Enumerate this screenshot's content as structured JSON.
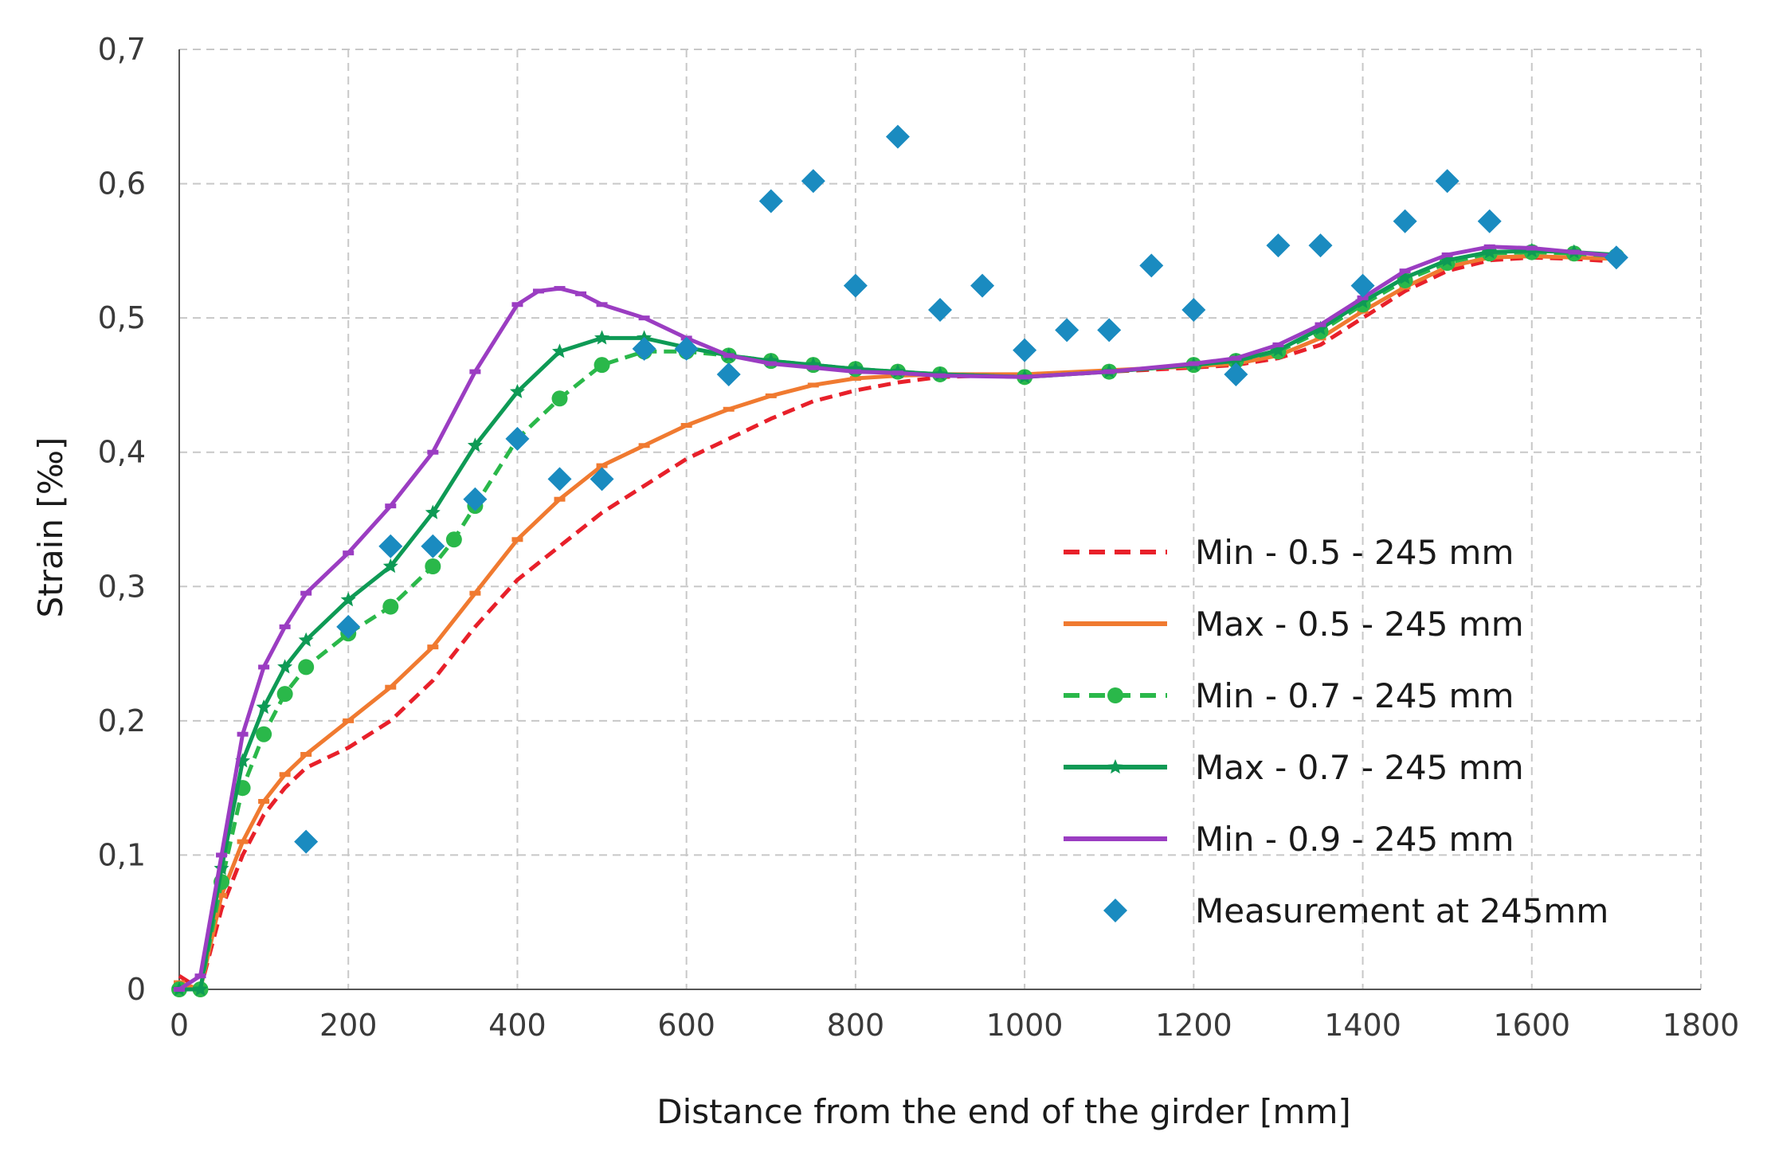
{
  "chart_data": {
    "type": "line",
    "title": "",
    "xlabel": "Distance from the end of the girder [mm]",
    "ylabel": "Strain [‰]",
    "xlim": [
      0,
      1800
    ],
    "ylim": [
      0,
      0.7
    ],
    "x_ticks": [
      0,
      200,
      400,
      600,
      800,
      1000,
      1200,
      1400,
      1600,
      1800
    ],
    "x_tick_labels": [
      "0",
      "200",
      "400",
      "600",
      "800",
      "1000",
      "1200",
      "1400",
      "1600",
      "1800"
    ],
    "y_ticks": [
      0,
      0.1,
      0.2,
      0.3,
      0.4,
      0.5,
      0.6,
      0.7
    ],
    "y_tick_labels": [
      "0",
      "0,1",
      "0,2",
      "0,3",
      "0,4",
      "0,5",
      "0,6",
      "0,7"
    ],
    "grid": true,
    "legend_position": "right-center",
    "series": [
      {
        "name": "Min - 0.5 - 245 mm",
        "color": "#e8202a",
        "style": "dashed",
        "marker": "none",
        "x": [
          0,
          25,
          50,
          75,
          100,
          125,
          150,
          200,
          250,
          300,
          350,
          400,
          450,
          500,
          550,
          600,
          650,
          700,
          750,
          800,
          850,
          900,
          1000,
          1100,
          1200,
          1250,
          1300,
          1350,
          1400,
          1450,
          1500,
          1550,
          1600,
          1650,
          1700
        ],
        "y": [
          0.01,
          0.0,
          0.06,
          0.1,
          0.13,
          0.15,
          0.165,
          0.18,
          0.2,
          0.23,
          0.27,
          0.305,
          0.33,
          0.355,
          0.375,
          0.395,
          0.41,
          0.425,
          0.438,
          0.446,
          0.452,
          0.456,
          0.458,
          0.46,
          0.463,
          0.465,
          0.47,
          0.48,
          0.5,
          0.52,
          0.535,
          0.543,
          0.545,
          0.544,
          0.542
        ]
      },
      {
        "name": "Max - 0.5 - 245 mm",
        "color": "#f07a30",
        "style": "solid",
        "marker": "dash",
        "x": [
          0,
          25,
          50,
          75,
          100,
          125,
          150,
          200,
          250,
          300,
          350,
          400,
          450,
          500,
          550,
          600,
          650,
          700,
          750,
          800,
          850,
          900,
          1000,
          1100,
          1200,
          1250,
          1300,
          1350,
          1400,
          1450,
          1500,
          1550,
          1600,
          1650,
          1700
        ],
        "y": [
          0.005,
          0.0,
          0.07,
          0.11,
          0.14,
          0.16,
          0.175,
          0.2,
          0.225,
          0.255,
          0.295,
          0.335,
          0.365,
          0.39,
          0.405,
          0.42,
          0.432,
          0.442,
          0.45,
          0.455,
          0.457,
          0.458,
          0.458,
          0.461,
          0.464,
          0.466,
          0.472,
          0.485,
          0.505,
          0.523,
          0.538,
          0.545,
          0.546,
          0.545,
          0.544
        ]
      },
      {
        "name": "Min - 0.7 - 245 mm",
        "color": "#2ab84a",
        "style": "dashed",
        "marker": "circle",
        "x": [
          0,
          25,
          50,
          75,
          100,
          125,
          150,
          200,
          250,
          300,
          325,
          350,
          400,
          450,
          500,
          550,
          600,
          650,
          700,
          750,
          800,
          850,
          900,
          1000,
          1100,
          1200,
          1250,
          1300,
          1350,
          1400,
          1450,
          1500,
          1550,
          1600,
          1650,
          1700
        ],
        "y": [
          0.0,
          0.0,
          0.08,
          0.15,
          0.19,
          0.22,
          0.24,
          0.265,
          0.285,
          0.315,
          0.335,
          0.36,
          0.41,
          0.44,
          0.465,
          0.475,
          0.475,
          0.472,
          0.468,
          0.465,
          0.462,
          0.46,
          0.458,
          0.456,
          0.46,
          0.465,
          0.468,
          0.475,
          0.49,
          0.51,
          0.528,
          0.541,
          0.548,
          0.549,
          0.548,
          0.546
        ]
      },
      {
        "name": "Max - 0.7 - 245 mm",
        "color": "#0e9a55",
        "style": "solid",
        "marker": "star",
        "x": [
          0,
          25,
          50,
          75,
          100,
          125,
          150,
          200,
          250,
          300,
          350,
          400,
          450,
          500,
          550,
          600,
          650,
          700,
          750,
          800,
          850,
          900,
          1000,
          1100,
          1200,
          1250,
          1300,
          1350,
          1400,
          1450,
          1500,
          1550,
          1600,
          1650,
          1700
        ],
        "y": [
          0.0,
          0.0,
          0.09,
          0.17,
          0.21,
          0.24,
          0.26,
          0.29,
          0.315,
          0.355,
          0.405,
          0.445,
          0.475,
          0.485,
          0.485,
          0.478,
          0.472,
          0.468,
          0.465,
          0.462,
          0.46,
          0.458,
          0.456,
          0.46,
          0.465,
          0.468,
          0.476,
          0.492,
          0.512,
          0.53,
          0.543,
          0.549,
          0.55,
          0.549,
          0.547
        ]
      },
      {
        "name": "Min - 0.9 - 245 mm",
        "color": "#9b3dc2",
        "style": "solid",
        "marker": "dash",
        "x": [
          0,
          25,
          50,
          75,
          100,
          125,
          150,
          200,
          250,
          300,
          350,
          400,
          425,
          450,
          475,
          500,
          550,
          600,
          650,
          700,
          750,
          800,
          850,
          900,
          1000,
          1100,
          1200,
          1250,
          1300,
          1350,
          1400,
          1450,
          1500,
          1550,
          1600,
          1650,
          1700
        ],
        "y": [
          0.0,
          0.01,
          0.1,
          0.19,
          0.24,
          0.27,
          0.295,
          0.325,
          0.36,
          0.4,
          0.46,
          0.51,
          0.52,
          0.522,
          0.518,
          0.51,
          0.5,
          0.485,
          0.472,
          0.466,
          0.463,
          0.46,
          0.459,
          0.457,
          0.456,
          0.46,
          0.466,
          0.47,
          0.48,
          0.495,
          0.515,
          0.535,
          0.547,
          0.553,
          0.552,
          0.549,
          0.546
        ]
      },
      {
        "name": "Measurement at 245mm",
        "color": "#1a8bc0",
        "style": "none",
        "marker": "diamond",
        "x": [
          150,
          200,
          250,
          300,
          350,
          400,
          450,
          500,
          550,
          600,
          650,
          700,
          750,
          800,
          850,
          900,
          950,
          1000,
          1050,
          1100,
          1150,
          1200,
          1250,
          1300,
          1350,
          1400,
          1450,
          1500,
          1550,
          1700
        ],
        "y": [
          0.11,
          0.27,
          0.33,
          0.33,
          0.365,
          0.41,
          0.38,
          0.38,
          0.477,
          0.477,
          0.458,
          0.587,
          0.602,
          0.524,
          0.635,
          0.506,
          0.524,
          0.476,
          0.491,
          0.491,
          0.539,
          0.506,
          0.458,
          0.554,
          0.554,
          0.524,
          0.572,
          0.602,
          0.572,
          0.545
        ]
      }
    ]
  }
}
